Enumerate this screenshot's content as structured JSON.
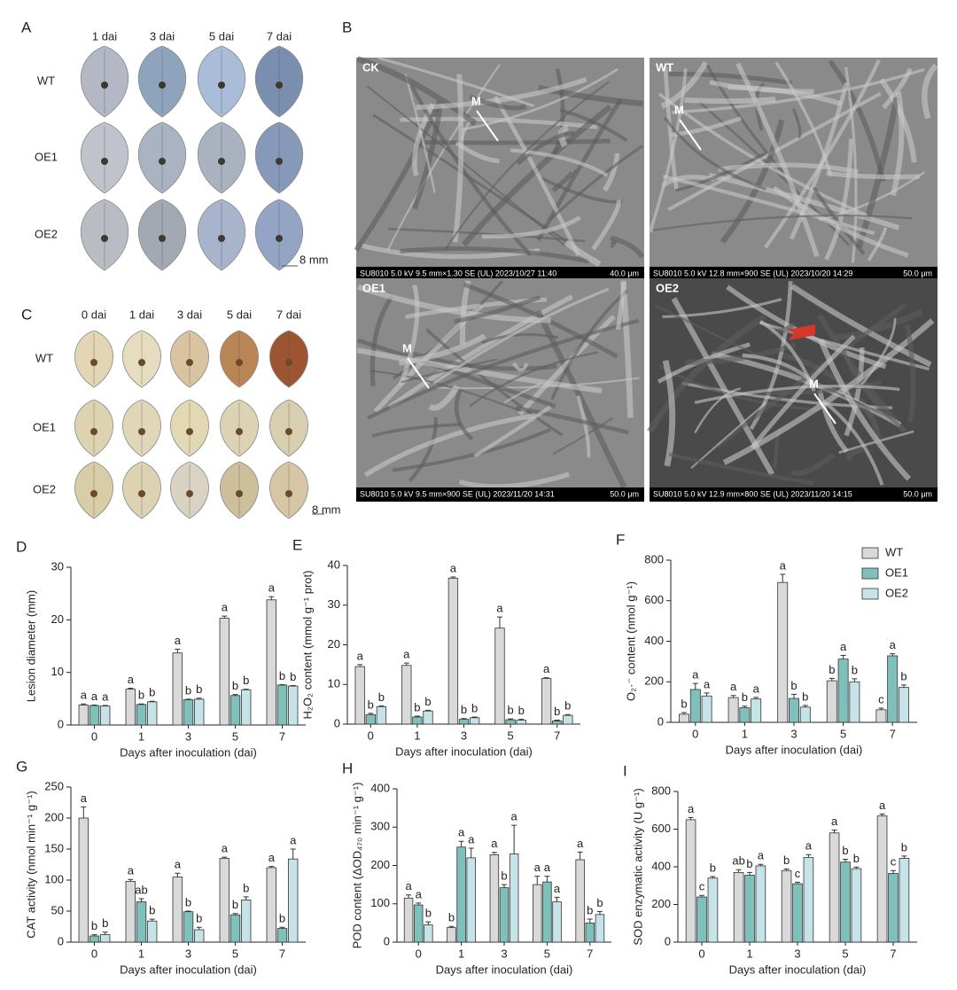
{
  "panel_a": {
    "label": "A",
    "columns": [
      "1 dai",
      "3 dai",
      "5 dai",
      "7 dai"
    ],
    "rows": [
      "WT",
      "OE1",
      "OE2"
    ],
    "scale": "8 mm"
  },
  "panel_b": {
    "label": "B",
    "images": [
      {
        "label": "CK",
        "marker": "M",
        "caption": "SU8010 5.0 kV 9.5 mm×1.30 SE (UL) 2023/10/27 11:40",
        "scale": "40.0 μm"
      },
      {
        "label": "WT",
        "marker": "M",
        "caption": "SU8010 5.0 kV 12.8 mm×900 SE (UL) 2023/10/20 14:29",
        "scale": "50.0 μm"
      },
      {
        "label": "OE1",
        "marker": "M",
        "caption": "SU8010 5.0 kV 9.5 mm×900 SE (UL) 2023/11/20 14:31",
        "scale": "50.0 μm"
      },
      {
        "label": "OE2",
        "marker": "M",
        "caption": "SU8010 5.0 kV 12.9 mm×800 SE (UL) 2023/11/20 14:15",
        "scale": "50.0 μm"
      }
    ]
  },
  "panel_c": {
    "label": "C",
    "columns": [
      "0 dai",
      "1 dai",
      "3 dai",
      "5 dai",
      "7 dai"
    ],
    "rows": [
      "WT",
      "OE1",
      "OE2"
    ],
    "scale": "8 mm"
  },
  "chart_data": [
    {
      "panel": "D",
      "type": "bar",
      "ylabel": "Lesion diameter (mm)",
      "xlabel": "Days after inoculation (dai)",
      "categories": [
        "0",
        "1",
        "3",
        "5",
        "7"
      ],
      "ylim": [
        0,
        30
      ],
      "yticks": [
        0,
        10,
        20,
        30
      ],
      "series": [
        {
          "color": "#d9d9d9",
          "values": [
            3.8,
            6.8,
            13.7,
            20.3,
            23.8
          ],
          "errors": [
            0.2,
            0.2,
            0.7,
            0.4,
            0.6
          ],
          "letters": [
            "a",
            "a",
            "a",
            "a",
            "a"
          ]
        },
        {
          "color": "#80c0ba",
          "values": [
            3.7,
            3.9,
            4.8,
            5.6,
            7.6
          ],
          "errors": [
            0.1,
            0.1,
            0.1,
            0.2,
            0.1
          ],
          "letters": [
            "a",
            "b",
            "b",
            "b",
            "b"
          ]
        },
        {
          "color": "#c6e4e7",
          "values": [
            3.6,
            4.4,
            4.9,
            6.7,
            7.4
          ],
          "errors": [
            0.1,
            0.1,
            0.2,
            0.1,
            0.1
          ],
          "letters": [
            "a",
            "b",
            "b",
            "b",
            "b"
          ]
        }
      ]
    },
    {
      "panel": "E",
      "type": "bar",
      "ylabel": "H₂O₂ content (mmol g⁻¹ prot)",
      "xlabel": "Days after inoculation (dai)",
      "categories": [
        "0",
        "1",
        "3",
        "5",
        "7"
      ],
      "ylim": [
        0,
        40
      ],
      "yticks": [
        0,
        10,
        20,
        30,
        40
      ],
      "series": [
        {
          "color": "#d9d9d9",
          "values": [
            14.5,
            14.8,
            36.8,
            24.2,
            11.5
          ],
          "errors": [
            0.5,
            0.6,
            0.3,
            2.8,
            0.2
          ],
          "letters": [
            "a",
            "a",
            "a",
            "a",
            "a"
          ]
        },
        {
          "color": "#80c0ba",
          "values": [
            2.4,
            1.8,
            1.2,
            1.1,
            0.8
          ],
          "errors": [
            0.3,
            0.2,
            0.2,
            0.2,
            0.2
          ],
          "letters": [
            "b",
            "b",
            "b",
            "b",
            "b"
          ]
        },
        {
          "color": "#c6e4e7",
          "values": [
            4.4,
            3.3,
            1.6,
            1.0,
            2.2
          ],
          "errors": [
            0.2,
            0.2,
            0.2,
            0.2,
            0.2
          ],
          "letters": [
            "b",
            "b",
            "b",
            "b",
            "b"
          ]
        }
      ]
    },
    {
      "panel": "F",
      "type": "bar",
      "ylabel": "O₂·⁻ content (nmol g⁻¹)",
      "xlabel": "Days after inoculation (dai)",
      "categories": [
        "0",
        "1",
        "3",
        "5",
        "7"
      ],
      "ylim": [
        0,
        800
      ],
      "yticks": [
        0,
        200,
        400,
        600,
        800
      ],
      "legend": "top-right",
      "series": [
        {
          "name": "WT",
          "color": "#d9d9d9",
          "values": [
            40,
            122,
            690,
            205,
            62
          ],
          "errors": [
            8,
            10,
            40,
            12,
            8
          ],
          "letters": [
            "b",
            "a",
            "a",
            "b",
            "c"
          ]
        },
        {
          "name": "OE1",
          "color": "#80c0ba",
          "values": [
            162,
            72,
            118,
            312,
            328
          ],
          "errors": [
            30,
            8,
            20,
            18,
            10
          ],
          "letters": [
            "a",
            "b",
            "b",
            "a",
            "a"
          ]
        },
        {
          "name": "OE2",
          "color": "#c6e4e7",
          "values": [
            130,
            115,
            75,
            200,
            172
          ],
          "errors": [
            15,
            8,
            8,
            15,
            12
          ],
          "letters": [
            "a",
            "a",
            "b",
            "b",
            "b"
          ]
        }
      ]
    },
    {
      "panel": "G",
      "type": "bar",
      "ylabel": "CAT activity (nmol min⁻¹ g⁻¹)",
      "xlabel": "Days after inoculation (dai)",
      "categories": [
        "0",
        "1",
        "3",
        "5",
        "7"
      ],
      "ylim": [
        0,
        250
      ],
      "yticks": [
        0,
        50,
        100,
        150,
        200,
        250
      ],
      "series": [
        {
          "color": "#d9d9d9",
          "values": [
            200,
            98,
            105,
            135,
            120
          ],
          "errors": [
            18,
            3,
            6,
            2,
            2
          ],
          "letters": [
            "a",
            "a",
            "a",
            "a",
            "a"
          ]
        },
        {
          "color": "#80c0ba",
          "values": [
            10,
            65,
            49,
            44,
            22
          ],
          "errors": [
            2,
            5,
            1,
            2,
            2
          ],
          "letters": [
            "b",
            "ab",
            "b",
            "b",
            "b"
          ]
        },
        {
          "color": "#c6e4e7",
          "values": [
            12,
            34,
            20,
            68,
            134
          ],
          "errors": [
            4,
            3,
            4,
            5,
            16
          ],
          "letters": [
            "b",
            "b",
            "b",
            "b",
            "a"
          ]
        }
      ]
    },
    {
      "panel": "H",
      "type": "bar",
      "ylabel": "POD content (ΔOD₄₇₀ min⁻¹ g⁻¹)",
      "xlabel": "Days after inoculation (dai)",
      "categories": [
        "0",
        "1",
        "3",
        "5",
        "7"
      ],
      "ylim": [
        0,
        400
      ],
      "yticks": [
        0,
        100,
        200,
        300,
        400
      ],
      "series": [
        {
          "color": "#d9d9d9",
          "values": [
            115,
            38,
            228,
            150,
            215
          ],
          "errors": [
            8,
            3,
            6,
            22,
            20
          ],
          "letters": [
            "a",
            "b",
            "a",
            "a",
            "a"
          ]
        },
        {
          "color": "#80c0ba",
          "values": [
            97,
            248,
            142,
            157,
            50
          ],
          "errors": [
            5,
            15,
            8,
            15,
            10
          ],
          "letters": [
            "a",
            "a",
            "b",
            "a",
            "b"
          ]
        },
        {
          "color": "#c6e4e7",
          "values": [
            45,
            220,
            230,
            105,
            72
          ],
          "errors": [
            8,
            25,
            75,
            12,
            8
          ],
          "letters": [
            "b",
            "a",
            "a",
            "a",
            "b"
          ]
        }
      ]
    },
    {
      "panel": "I",
      "type": "bar",
      "ylabel": "SOD enzymatic activity (U g⁻¹)",
      "xlabel": "Days after inoculation (dai)",
      "categories": [
        "0",
        "1",
        "3",
        "5",
        "7"
      ],
      "ylim": [
        0,
        800
      ],
      "yticks": [
        0,
        200,
        400,
        600,
        800
      ],
      "series": [
        {
          "color": "#d9d9d9",
          "values": [
            650,
            370,
            380,
            580,
            670
          ],
          "errors": [
            12,
            15,
            8,
            15,
            10
          ],
          "letters": [
            "a",
            "ab",
            "b",
            "a",
            "a"
          ]
        },
        {
          "color": "#80c0ba",
          "values": [
            240,
            355,
            310,
            425,
            365
          ],
          "errors": [
            8,
            15,
            8,
            15,
            15
          ],
          "letters": [
            "c",
            "b",
            "c",
            "b",
            "c"
          ]
        },
        {
          "color": "#c6e4e7",
          "values": [
            340,
            405,
            450,
            390,
            445
          ],
          "errors": [
            8,
            8,
            15,
            8,
            12
          ],
          "letters": [
            "b",
            "a",
            "a",
            "b",
            "b"
          ]
        }
      ]
    }
  ]
}
